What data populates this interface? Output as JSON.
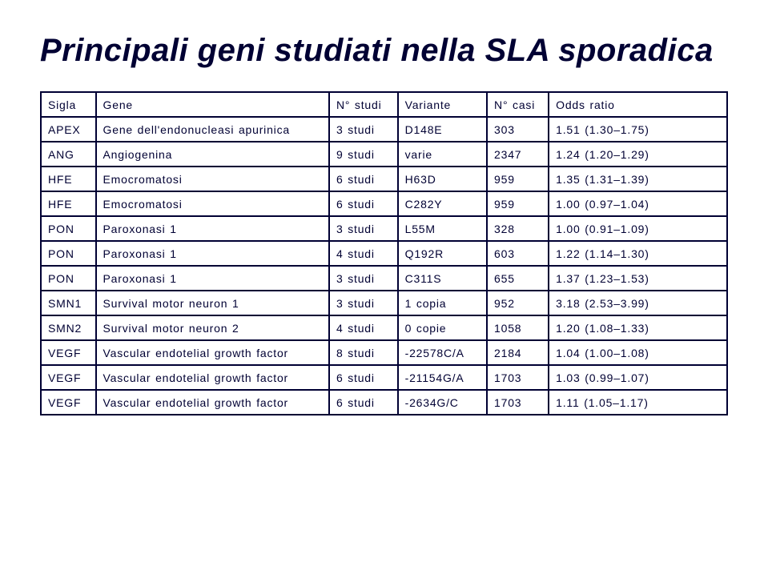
{
  "title": "Principali geni studiati nella SLA sporadica",
  "headers": [
    "Sigla",
    "Gene",
    "N° studi",
    "Variante",
    "N° casi",
    "Odds ratio"
  ],
  "rows": [
    [
      "APEX",
      "Gene dell'endonucleasi apurinica",
      "3 studi",
      "D148E",
      "303",
      "1.51 (1.30–1.75)"
    ],
    [
      "ANG",
      "Angiogenina",
      "9 studi",
      "varie",
      "2347",
      "1.24 (1.20–1.29)"
    ],
    [
      "HFE",
      "Emocromatosi",
      "6 studi",
      "H63D",
      "959",
      "1.35 (1.31–1.39)"
    ],
    [
      "HFE",
      "Emocromatosi",
      "6 studi",
      "C282Y",
      "959",
      "1.00 (0.97–1.04)"
    ],
    [
      "PON",
      "Paroxonasi 1",
      "3 studi",
      "L55M",
      "328",
      "1.00 (0.91–1.09)"
    ],
    [
      "PON",
      "Paroxonasi 1",
      "4 studi",
      "Q192R",
      "603",
      "1.22 (1.14–1.30)"
    ],
    [
      "PON",
      "Paroxonasi 1",
      "3 studi",
      "C311S",
      "655",
      "1.37 (1.23–1.53)"
    ],
    [
      "SMN1",
      "Survival motor neuron 1",
      "3 studi",
      "1 copia",
      "952",
      "3.18 (2.53–3.99)"
    ],
    [
      "SMN2",
      "Survival motor neuron 2",
      "4 studi",
      "0 copie",
      "1058",
      "1.20 (1.08–1.33)"
    ],
    [
      "VEGF",
      "Vascular endotelial growth factor",
      "8 studi",
      "-22578C/A",
      "2184",
      "1.04 (1.00–1.08)"
    ],
    [
      "VEGF",
      "Vascular endotelial growth factor",
      "6 studi",
      "-21154G/A",
      "1703",
      "1.03 (0.99–1.07)"
    ],
    [
      "VEGF",
      "Vascular endotelial growth factor",
      "6 studi",
      "-2634G/C",
      "1703",
      "1.11 (1.05–1.17)"
    ]
  ]
}
